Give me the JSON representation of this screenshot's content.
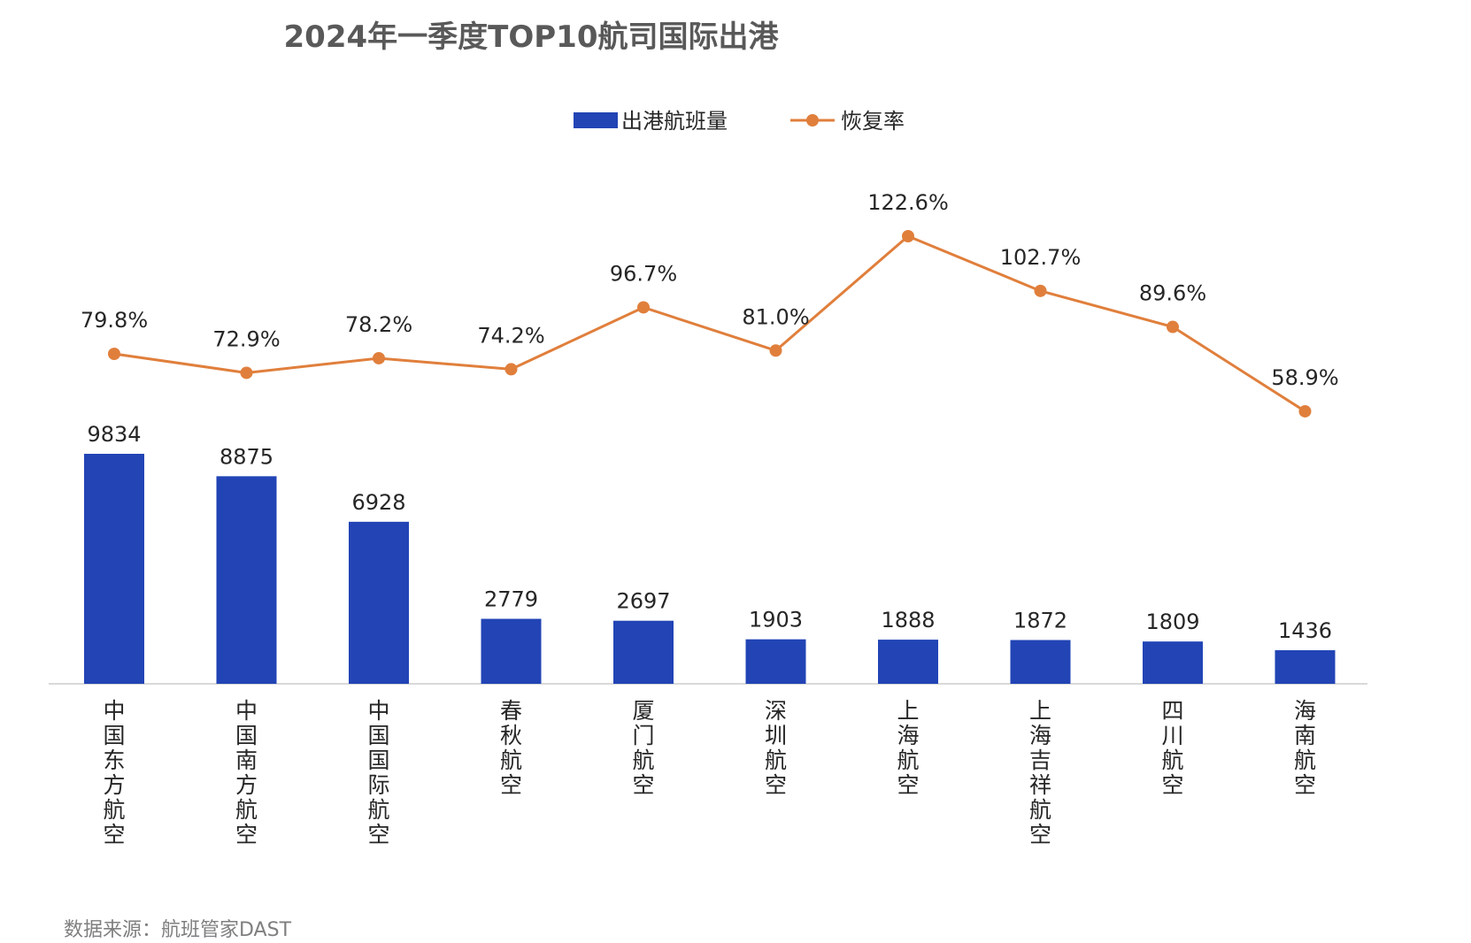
{
  "title": "2024年一季度TOP10航司国际出港",
  "source": "数据来源：航班管家DAST",
  "colors": {
    "bar": "#2244b5",
    "line": "#e07f3c",
    "axis": "#d9d9d9"
  },
  "chart_data": {
    "type": "bar",
    "title": "2024年一季度TOP10航司国际出港",
    "categories": [
      "中国东方航空",
      "中国南方航空",
      "中国国际航空",
      "春秋航空",
      "厦门航空",
      "深圳航空",
      "上海航空",
      "上海吉祥航空",
      "四川航空",
      "海南航空"
    ],
    "series": [
      {
        "name": "出港航班量",
        "type": "bar",
        "values": [
          9834,
          8875,
          6928,
          2779,
          2697,
          1903,
          1888,
          1872,
          1809,
          1436
        ]
      },
      {
        "name": "恢复率",
        "type": "line",
        "values": [
          79.8,
          72.9,
          78.2,
          74.2,
          96.7,
          81.0,
          122.6,
          102.7,
          89.6,
          58.9
        ],
        "labels": [
          "79.8%",
          "72.9%",
          "78.2%",
          "74.2%",
          "96.7%",
          "81.0%",
          "122.6%",
          "102.7%",
          "89.6%",
          "58.9%"
        ]
      }
    ],
    "legend": [
      "出港航班量",
      "恢复率"
    ],
    "legend_position": "top-center",
    "grid": false
  }
}
